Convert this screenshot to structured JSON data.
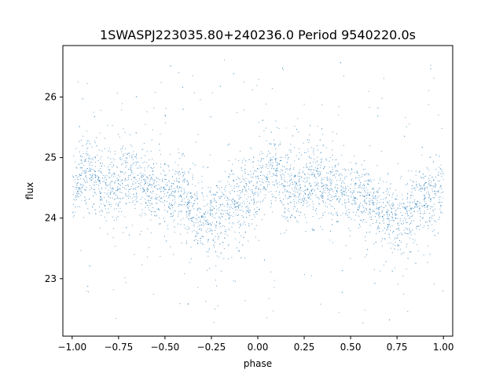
{
  "chart_data": {
    "type": "scatter",
    "title": "1SWASPJ223035.80+240236.0 Period 9540220.0s",
    "xlabel": "phase",
    "ylabel": "flux",
    "xlim": [
      -1.05,
      1.05
    ],
    "ylim": [
      22.05,
      26.85
    ],
    "xticks": [
      -1.0,
      -0.75,
      -0.5,
      -0.25,
      0.0,
      0.25,
      0.5,
      0.75,
      1.0
    ],
    "xtick_labels": [
      "−1.00",
      "−0.75",
      "−0.50",
      "−0.25",
      "0.00",
      "0.25",
      "0.50",
      "0.75",
      "1.00"
    ],
    "yticks": [
      23,
      24,
      25,
      26
    ],
    "ytick_labels": [
      "23",
      "24",
      "25",
      "26"
    ],
    "marker_color": "#1f77b4",
    "grid": false,
    "series": [
      {
        "x": [
          -1.0,
          -0.95,
          -0.9,
          -0.85,
          -0.8,
          -0.75,
          -0.7,
          -0.65,
          -0.6,
          -0.55,
          -0.5,
          -0.45,
          -0.4,
          -0.35,
          -0.3,
          -0.25,
          -0.2,
          -0.15,
          -0.1,
          -0.05,
          0.0,
          0.05,
          0.1,
          0.15,
          0.2,
          0.25,
          0.3,
          0.35,
          0.4,
          0.45,
          0.5,
          0.55,
          0.6,
          0.65,
          0.7,
          0.75,
          0.8,
          0.85,
          0.9,
          0.95,
          1.0
        ],
        "values": [
          24.5,
          24.75,
          24.8,
          24.5,
          24.45,
          24.55,
          24.75,
          24.6,
          24.5,
          24.45,
          24.4,
          24.35,
          24.3,
          24.15,
          24.0,
          23.95,
          24.05,
          24.2,
          24.3,
          24.4,
          24.5,
          24.75,
          24.8,
          24.5,
          24.45,
          24.55,
          24.75,
          24.6,
          24.5,
          24.45,
          24.4,
          24.35,
          24.3,
          24.15,
          24.0,
          23.95,
          24.05,
          24.2,
          24.3,
          24.4,
          24.5
        ]
      }
    ]
  }
}
